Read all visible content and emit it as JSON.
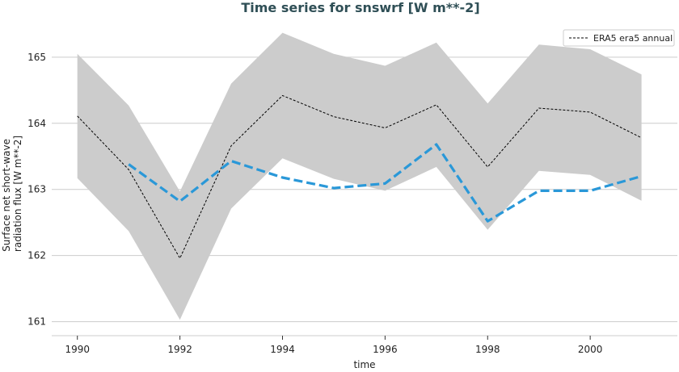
{
  "chart_data": {
    "type": "line",
    "title": "Time series for snswrf [W m**-2]",
    "xlabel": "time",
    "ylabel_lines": [
      "Surface net short-wave",
      "radiation flux [W m**-2]"
    ],
    "xlim": [
      1989.5,
      2001.7
    ],
    "ylim": [
      160.8,
      165.45
    ],
    "xticks": [
      1990,
      1992,
      1994,
      1996,
      1998,
      2000
    ],
    "yticks": [
      161,
      162,
      163,
      164,
      165
    ],
    "grid": "horizontal",
    "legend_position": "top-right",
    "x": [
      1990,
      1991,
      1992,
      1993,
      1994,
      1995,
      1996,
      1997,
      1998,
      1999,
      2000,
      2001
    ],
    "band": {
      "x": [
        1990,
        1991,
        1992,
        1993,
        1994,
        1995,
        1996,
        1997,
        1998,
        1999,
        2000,
        2001
      ],
      "upper": [
        165.05,
        164.27,
        162.97,
        164.6,
        165.37,
        165.05,
        164.87,
        165.22,
        164.3,
        165.19,
        165.12,
        164.74
      ],
      "lower": [
        163.17,
        162.37,
        161.03,
        162.71,
        163.47,
        163.16,
        162.98,
        163.34,
        162.39,
        163.28,
        163.22,
        162.83
      ],
      "color": "#cccccc"
    },
    "series": [
      {
        "name": "ERA5 era5 annual",
        "style": "dashed-thin",
        "color": "#000000",
        "x": [
          1990,
          1991,
          1992,
          1993,
          1994,
          1995,
          1996,
          1997,
          1998,
          1999,
          2000,
          2001
        ],
        "values": [
          164.11,
          163.3,
          161.96,
          163.66,
          164.42,
          164.1,
          163.93,
          164.28,
          163.34,
          164.23,
          164.17,
          163.78
        ]
      },
      {
        "style": "dashed-thick",
        "color": "#2a98d8",
        "x": [
          1991,
          1992,
          1993,
          1994,
          1995,
          1996,
          1997,
          1998,
          1999,
          2000,
          2001
        ],
        "values": [
          163.38,
          162.82,
          163.43,
          163.18,
          163.02,
          163.09,
          163.68,
          162.52,
          162.98,
          162.98,
          163.2
        ]
      }
    ]
  }
}
